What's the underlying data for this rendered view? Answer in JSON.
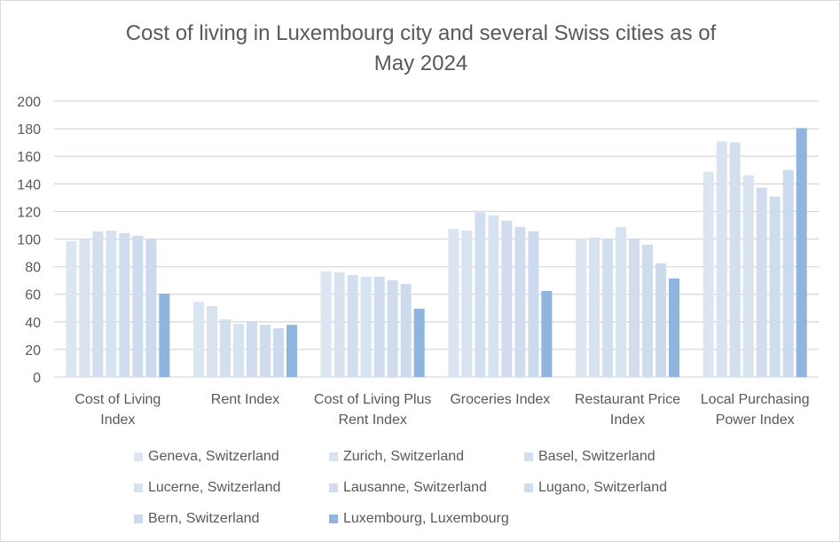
{
  "chart_data": {
    "type": "bar",
    "title": "Cost of living in Luxembourg city and several Swiss cities as of May 2024",
    "title_lines": [
      "Cost of living in Luxembourg city and several Swiss cities as of",
      "May 2024"
    ],
    "categories": [
      [
        "Cost of Living",
        "Index"
      ],
      [
        "Rent Index"
      ],
      [
        "Cost of Living Plus",
        "Rent Index"
      ],
      [
        "Groceries Index"
      ],
      [
        "Restaurant Price",
        "Index"
      ],
      [
        "Local Purchasing",
        "Power Index"
      ]
    ],
    "ylim": [
      0,
      200
    ],
    "yticks": [
      0,
      20,
      40,
      60,
      80,
      100,
      120,
      140,
      160,
      180,
      200
    ],
    "grid": true,
    "legend_position": "bottom",
    "series": [
      {
        "name": "Geneva, Switzerland",
        "color": "#dce6f2",
        "values": [
          98.5,
          54.6,
          76.6,
          107.5,
          99.4,
          148.8
        ]
      },
      {
        "name": "Zurich, Switzerland",
        "color": "#d9e3f0",
        "values": [
          99.8,
          51.4,
          75.9,
          106.2,
          101.1,
          170.8
        ]
      },
      {
        "name": "Basel, Switzerland",
        "color": "#d3dfee",
        "values": [
          105.6,
          41.7,
          74.0,
          119.4,
          100.4,
          170.1
        ]
      },
      {
        "name": "Lucerne, Switzerland",
        "color": "#d8e3f1",
        "values": [
          106.2,
          38.5,
          72.7,
          117.2,
          108.8,
          146.2
        ]
      },
      {
        "name": "Lausanne, Switzerland",
        "color": "#d1ddee",
        "values": [
          104.3,
          40.4,
          72.7,
          113.3,
          99.8,
          137.2
        ]
      },
      {
        "name": "Lugano, Switzerland",
        "color": "#cfdcee",
        "values": [
          102.4,
          37.8,
          70.1,
          108.8,
          95.9,
          130.8
        ]
      },
      {
        "name": "Bern, Switzerland",
        "color": "#ccdaed",
        "values": [
          99.8,
          35.3,
          67.5,
          105.6,
          82.4,
          150.1
        ]
      },
      {
        "name": "Luxembourg, Luxembourg",
        "color": "#8fb4de",
        "values": [
          60.4,
          37.8,
          49.5,
          62.4,
          71.4,
          180.4
        ]
      }
    ]
  }
}
